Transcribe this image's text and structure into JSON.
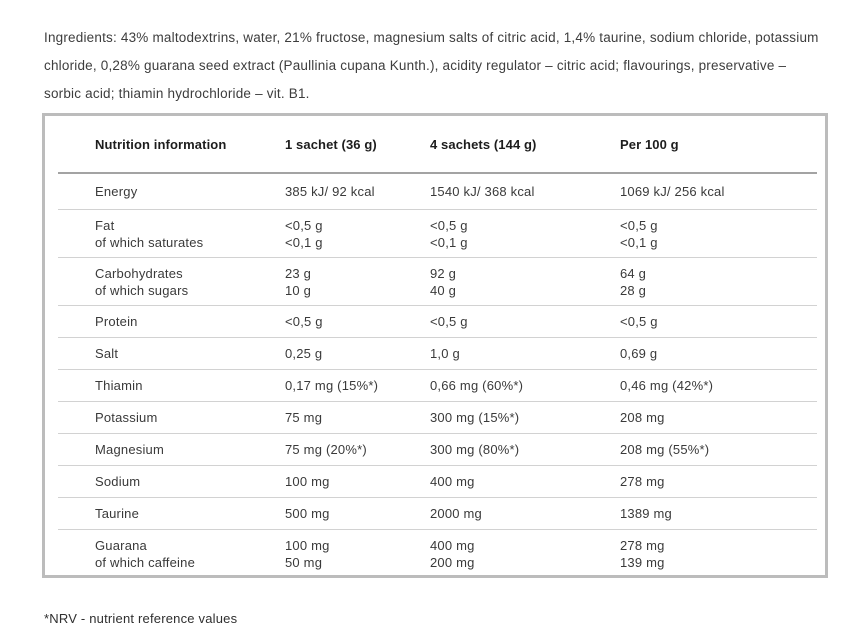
{
  "page": {
    "ingredients": "Ingredients: 43% maltodextrins, water, 21% fructose, magnesium salts of citric acid, 1,4% taurine, sodium chloride, potassium chloride, 0,28% guarana seed extract (Paullinia cupana Kunth.), acidity regulator – citric acid; flavourings, preservative – sorbic acid; thiamin hydrochloride – vit. B1.",
    "footnote": "*NRV - nutrient reference values"
  },
  "table": {
    "headers": [
      "Nutrition information",
      "1 sachet (36 g)",
      "4 sachets (144 g)",
      "Per 100 g"
    ],
    "rows": [
      {
        "size": "energy",
        "label": [
          "Energy"
        ],
        "values": [
          [
            "385 kJ/ 92 kcal"
          ],
          [
            "1540 kJ/ 368 kcal"
          ],
          [
            "1069 kJ/ 256 kcal"
          ]
        ]
      },
      {
        "label": [
          "Fat",
          "of which saturates"
        ],
        "values": [
          [
            "<0,5 g",
            "<0,1 g"
          ],
          [
            "<0,5 g",
            "<0,1 g"
          ],
          [
            "<0,5 g",
            "<0,1 g"
          ]
        ]
      },
      {
        "label": [
          "Carbohydrates",
          "of which sugars"
        ],
        "values": [
          [
            "23 g",
            "10 g"
          ],
          [
            "92 g",
            "40 g"
          ],
          [
            "64 g",
            "28 g"
          ]
        ]
      },
      {
        "label": [
          "Protein"
        ],
        "values": [
          [
            "<0,5 g"
          ],
          [
            "<0,5 g"
          ],
          [
            "<0,5 g"
          ]
        ]
      },
      {
        "label": [
          "Salt"
        ],
        "values": [
          [
            "0,25 g"
          ],
          [
            "1,0 g"
          ],
          [
            "0,69 g"
          ]
        ]
      },
      {
        "label": [
          "Thiamin"
        ],
        "values": [
          [
            "0,17 mg (15%*)"
          ],
          [
            "0,66 mg (60%*)"
          ],
          [
            "0,46 mg (42%*)"
          ]
        ]
      },
      {
        "label": [
          "Potassium"
        ],
        "values": [
          [
            "75 mg"
          ],
          [
            "300 mg (15%*)"
          ],
          [
            "208 mg"
          ]
        ]
      },
      {
        "label": [
          "Magnesium"
        ],
        "values": [
          [
            "75 mg (20%*)"
          ],
          [
            "300 mg (80%*)"
          ],
          [
            "208 mg (55%*)"
          ]
        ]
      },
      {
        "label": [
          "Sodium"
        ],
        "values": [
          [
            "100 mg"
          ],
          [
            "400 mg"
          ],
          [
            "278 mg"
          ]
        ]
      },
      {
        "label": [
          "Taurine"
        ],
        "values": [
          [
            "500 mg"
          ],
          [
            "2000 mg"
          ],
          [
            "1389 mg"
          ]
        ]
      },
      {
        "label": [
          "Guarana",
          "of which caffeine"
        ],
        "values": [
          [
            "100 mg",
            "50 mg"
          ],
          [
            "400 mg",
            "200 mg"
          ],
          [
            "278 mg",
            "139 mg"
          ]
        ]
      }
    ]
  },
  "colors": {
    "text": "#3a3a3a",
    "heading_text": "#1d1d1d",
    "table_border": "#bcbcbc",
    "header_rule": "#a3a3a3",
    "row_rule": "#d2d2d2"
  }
}
